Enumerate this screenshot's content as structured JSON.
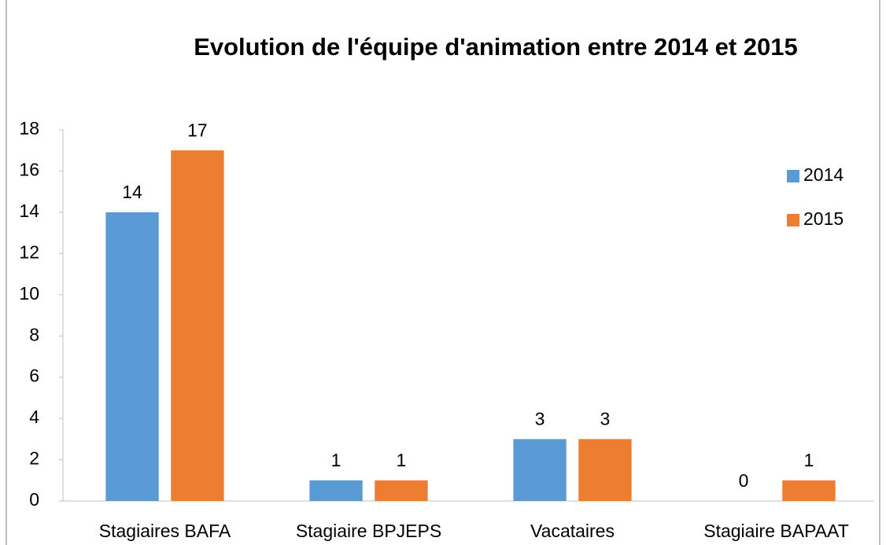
{
  "chart_data": {
    "type": "bar",
    "title": "Evolution de l'équipe d'animation entre 2014 et 2015",
    "categories": [
      "Stagiaires BAFA",
      "Stagiaire BPJEPS",
      "Vacataires",
      "Stagiaire BAPAAT"
    ],
    "series": [
      {
        "name": "2014",
        "color": "#5b9bd5",
        "values": [
          14,
          1,
          3,
          0
        ]
      },
      {
        "name": "2015",
        "color": "#ed7d31",
        "values": [
          17,
          1,
          3,
          1
        ]
      }
    ],
    "ylim": [
      0,
      18
    ],
    "yticks": [
      0,
      2,
      4,
      6,
      8,
      10,
      12,
      14,
      16,
      18
    ],
    "grid": false,
    "legend": "right"
  }
}
